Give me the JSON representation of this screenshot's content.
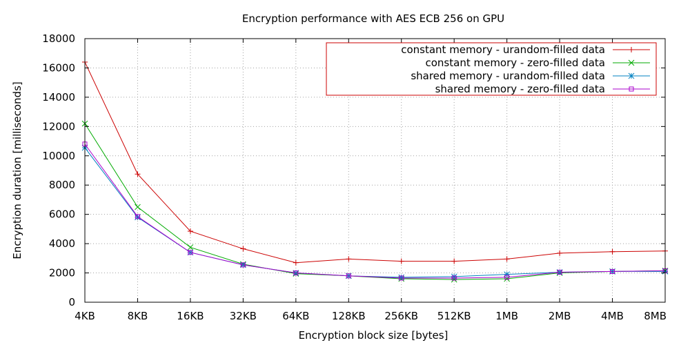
{
  "chart_data": {
    "type": "line",
    "title": "Encryption performance with AES ECB 256 on GPU",
    "xlabel": "Encryption block size [bytes]",
    "ylabel": "Encryption duration [milliseconds]",
    "categories": [
      "4KB",
      "8KB",
      "16KB",
      "32KB",
      "64KB",
      "128KB",
      "256KB",
      "512KB",
      "1MB",
      "2MB",
      "4MB",
      "8MB"
    ],
    "ylim": [
      0,
      18000
    ],
    "yticks": [
      0,
      2000,
      4000,
      6000,
      8000,
      10000,
      12000,
      14000,
      16000,
      18000
    ],
    "grid": true,
    "legend_position": "top-right",
    "series": [
      {
        "name": "constant memory - urandom-filled data",
        "color": "#cc0000",
        "marker": "plus",
        "values": [
          16400,
          8750,
          4850,
          3650,
          2700,
          2950,
          2800,
          2800,
          2950,
          3350,
          3450,
          3500
        ]
      },
      {
        "name": "constant memory - zero-filled data",
        "color": "#00aa00",
        "marker": "cross",
        "values": [
          12200,
          6500,
          3750,
          2600,
          1950,
          1800,
          1600,
          1550,
          1600,
          2000,
          2100,
          2150
        ]
      },
      {
        "name": "shared memory - urandom-filled data",
        "color": "#0080c0",
        "marker": "star",
        "values": [
          10550,
          5800,
          3400,
          2550,
          2000,
          1800,
          1700,
          1750,
          1900,
          2050,
          2100,
          2100
        ]
      },
      {
        "name": "shared memory - zero-filled data",
        "color": "#aa00cc",
        "marker": "box",
        "values": [
          10800,
          5850,
          3400,
          2550,
          2000,
          1800,
          1650,
          1650,
          1700,
          2050,
          2100,
          2150
        ]
      }
    ]
  }
}
